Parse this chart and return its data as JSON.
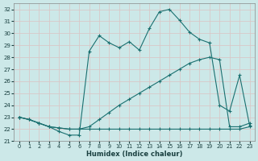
{
  "xlabel": "Humidex (Indice chaleur)",
  "bg_color": "#cce8e8",
  "grid_color": "#b8d8d8",
  "line_color": "#1a7070",
  "xlim": [
    -0.5,
    23.5
  ],
  "ylim": [
    21,
    32.5
  ],
  "xticks": [
    0,
    1,
    2,
    3,
    4,
    5,
    6,
    7,
    8,
    9,
    10,
    11,
    12,
    13,
    14,
    15,
    16,
    17,
    18,
    19,
    20,
    21,
    22,
    23
  ],
  "yticks": [
    21,
    22,
    23,
    24,
    25,
    26,
    27,
    28,
    29,
    30,
    31,
    32
  ],
  "line1_x": [
    0,
    1,
    2,
    3,
    4,
    5,
    6,
    7,
    8,
    9,
    10,
    11,
    12,
    13,
    14,
    15,
    16,
    17,
    18,
    19,
    20,
    21,
    22,
    23
  ],
  "line1_y": [
    23.0,
    22.8,
    22.5,
    22.2,
    22.1,
    22.0,
    22.0,
    22.0,
    22.0,
    22.0,
    22.0,
    22.0,
    22.0,
    22.0,
    22.0,
    22.0,
    22.0,
    22.0,
    22.0,
    22.0,
    22.0,
    22.0,
    22.0,
    22.2
  ],
  "line2_x": [
    0,
    1,
    2,
    3,
    4,
    5,
    6,
    7,
    8,
    9,
    10,
    11,
    12,
    13,
    14,
    15,
    16,
    17,
    18,
    19,
    20,
    21,
    22,
    23
  ],
  "line2_y": [
    23.0,
    22.8,
    22.5,
    22.2,
    22.1,
    22.0,
    22.0,
    22.2,
    22.8,
    23.4,
    24.0,
    24.5,
    25.0,
    25.5,
    26.0,
    26.5,
    27.0,
    27.5,
    27.8,
    28.0,
    27.8,
    22.2,
    22.2,
    22.5
  ],
  "line3_x": [
    0,
    1,
    2,
    3,
    4,
    5,
    6,
    7,
    8,
    9,
    10,
    11,
    12,
    13,
    14,
    15,
    16,
    17,
    18,
    19,
    20,
    21,
    22,
    23
  ],
  "line3_y": [
    23.0,
    22.8,
    22.5,
    22.2,
    21.8,
    21.5,
    21.5,
    28.5,
    29.8,
    29.2,
    28.8,
    29.3,
    28.6,
    30.4,
    31.8,
    32.0,
    31.1,
    30.1,
    29.5,
    29.2,
    24.0,
    23.5,
    26.5,
    22.3
  ]
}
